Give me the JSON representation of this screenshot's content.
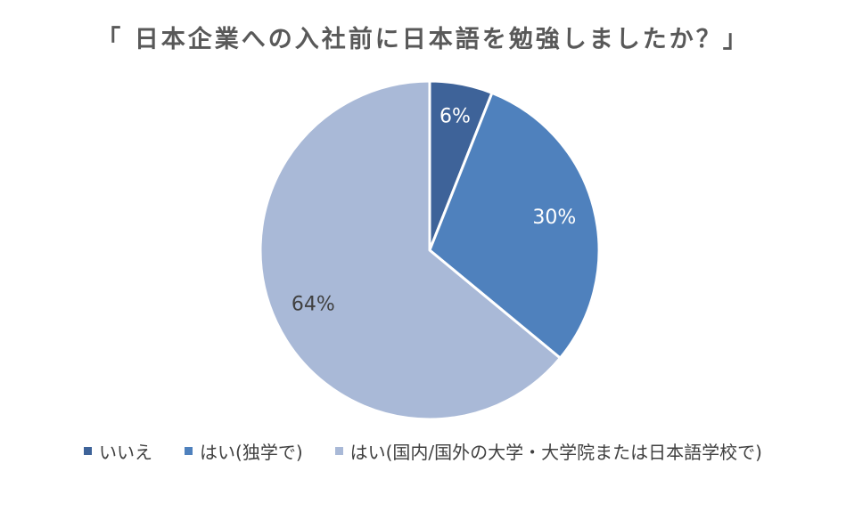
{
  "chart_data": {
    "type": "pie",
    "title": "「 日本企業への入社前に日本語を勉強しましたか？」",
    "categories": [
      "いいえ",
      "はい(独学で)",
      "はい(国内/国外の大学・大学院または日本語学校で)"
    ],
    "values": [
      6,
      30,
      64
    ],
    "data_labels": [
      "6%",
      "30%",
      "64%"
    ],
    "colors": [
      "#3e6399",
      "#4f81bd",
      "#a9b9d7"
    ],
    "label_colors": [
      "#ffffff",
      "#ffffff",
      "#404040"
    ],
    "legend_position": "bottom"
  }
}
